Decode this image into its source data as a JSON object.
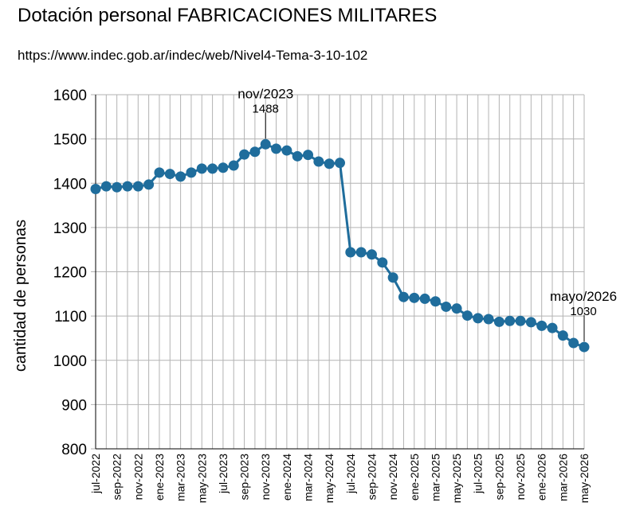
{
  "title": "Dotación personal FABRICACIONES MILITARES",
  "subtitle": "https://www.indec.gob.ar/indec/web/Nivel4-Tema-3-10-102",
  "colors": {
    "series": "#1f6d9c",
    "grid": "#b3b3b3",
    "axis": "#000000"
  },
  "chart_data": {
    "type": "line",
    "title": "Dotación personal FABRICACIONES MILITARES",
    "subtitle": "https://www.indec.gob.ar/indec/web/Nivel4-Tema-3-10-102",
    "xlabel": "",
    "ylabel": "cantidad de personas",
    "ylim": [
      800,
      1600
    ],
    "yticks": [
      800,
      900,
      1000,
      1100,
      1200,
      1300,
      1400,
      1500,
      1600
    ],
    "grid": true,
    "markers": true,
    "x": [
      "jul-2022",
      "ago-2022",
      "sep-2022",
      "oct-2022",
      "nov-2022",
      "dic-2022",
      "ene-2023",
      "feb-2023",
      "mar-2023",
      "abr-2023",
      "may-2023",
      "jun-2023",
      "jul-2023",
      "ago-2023",
      "sep-2023",
      "oct-2023",
      "nov-2023",
      "dic-2023",
      "ene-2024",
      "feb-2024",
      "mar-2024",
      "abr-2024",
      "may-2024",
      "jun-2024",
      "jul-2024",
      "ago-2024",
      "sep-2024",
      "oct-2024",
      "nov-2024",
      "dic-2024",
      "ene-2025",
      "feb-2025",
      "mar-2025",
      "abr-2025",
      "may-2025",
      "jun-2025",
      "jul-2025",
      "ago-2025",
      "sep-2025",
      "oct-2025",
      "nov-2025",
      "dic-2025",
      "ene-2026",
      "feb-2026",
      "mar-2026",
      "abr-2026",
      "may-2026"
    ],
    "xtick_labels": [
      "jul-2022",
      "sep-2022",
      "nov-2022",
      "ene-2023",
      "mar-2023",
      "may-2023",
      "jul-2023",
      "sep-2023",
      "nov-2023",
      "ene-2024",
      "mar-2024",
      "may-2024",
      "jul-2024",
      "sep-2024",
      "nov-2024",
      "ene-2025",
      "mar-2025",
      "may-2025",
      "jul-2025",
      "sep-2025",
      "nov-2025",
      "ene-2026",
      "mar-2026",
      "may-2026"
    ],
    "series": [
      {
        "values": [
          1387,
          1393,
          1391,
          1393,
          1393,
          1397,
          1424,
          1421,
          1415,
          1424,
          1433,
          1433,
          1435,
          1440,
          1465,
          1471,
          1488,
          1478,
          1474,
          1461,
          1464,
          1449,
          1444,
          1446,
          1244,
          1244,
          1239,
          1221,
          1187,
          1143,
          1141,
          1139,
          1133,
          1121,
          1117,
          1101,
          1095,
          1093,
          1087,
          1089,
          1089,
          1086,
          1078,
          1073,
          1056,
          1039,
          1030
        ]
      }
    ],
    "annotations": [
      {
        "x": "nov-2023",
        "value": 1488,
        "label": "nov/2023",
        "value_label": "1488"
      },
      {
        "x": "may-2026",
        "value": 1030,
        "label": "mayo/2026",
        "value_label": "1030"
      }
    ]
  }
}
